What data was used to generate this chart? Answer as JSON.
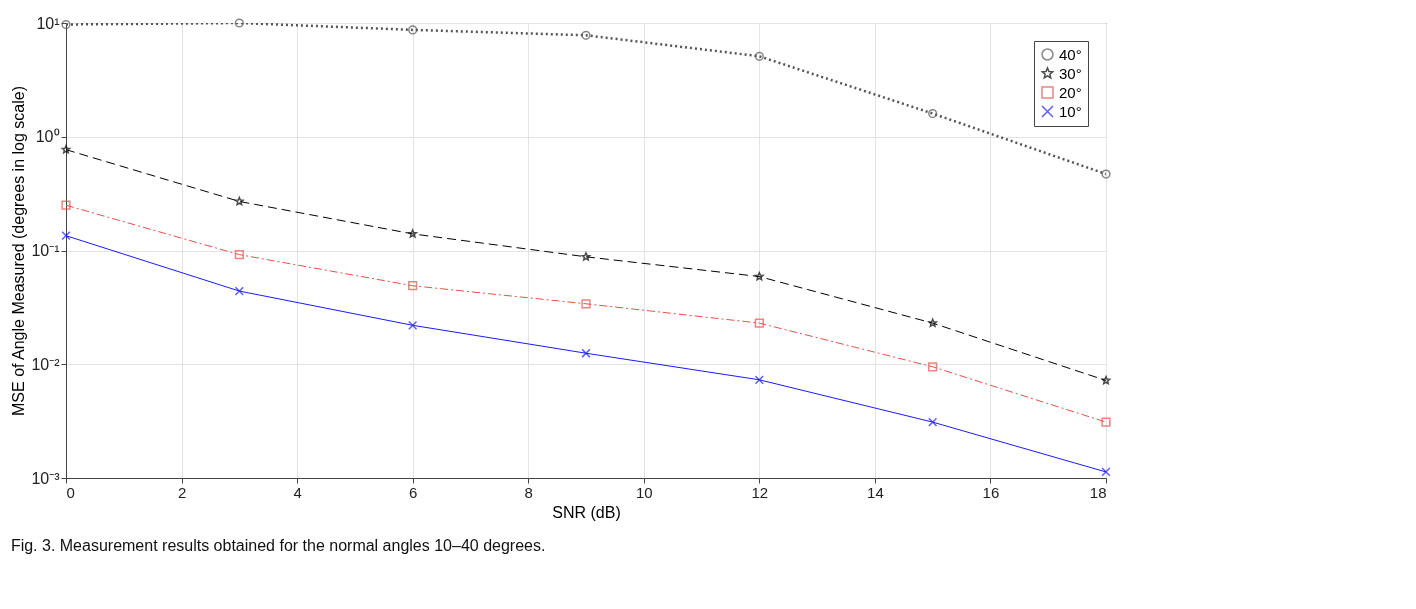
{
  "chart_data": {
    "type": "line",
    "xlabel": "SNR (dB)",
    "ylabel": "MSE of Angle Measured (degrees in log scale)",
    "x": [
      0,
      3,
      6,
      9,
      12,
      15,
      18
    ],
    "series": [
      {
        "name": "40°",
        "color": "#555555",
        "marker": "circle",
        "line_style": "dotted",
        "values": [
          9.7,
          10,
          8.7,
          7.8,
          5.1,
          1.6,
          0.47
        ]
      },
      {
        "name": "30°",
        "color": "#000000",
        "marker": "star",
        "line_style": "dashed",
        "values": [
          0.77,
          0.27,
          0.14,
          0.088,
          0.059,
          0.023,
          0.0072
        ]
      },
      {
        "name": "20°",
        "color": "#e8504a",
        "marker": "square",
        "line_style": "dashdot",
        "values": [
          0.25,
          0.092,
          0.049,
          0.034,
          0.023,
          0.0095,
          0.0031
        ]
      },
      {
        "name": "10°",
        "color": "#1a1aff",
        "marker": "cross",
        "line_style": "solid",
        "values": [
          0.135,
          0.044,
          0.022,
          0.0125,
          0.0073,
          0.0031,
          0.00113
        ]
      }
    ],
    "xlim": [
      0,
      18
    ],
    "xticks": [
      0,
      2,
      4,
      6,
      8,
      10,
      12,
      14,
      16,
      18
    ],
    "ylim": [
      0.001,
      10
    ],
    "yticks": [
      {
        "value": 0.001,
        "label": "10⁻³"
      },
      {
        "value": 0.01,
        "label": "10⁻²"
      },
      {
        "value": 0.1,
        "label": "10⁻¹"
      },
      {
        "value": 1,
        "label": "10⁰"
      },
      {
        "value": 10,
        "label": "10¹"
      }
    ],
    "log": true,
    "grid": true,
    "legend": "top right",
    "annotations": [
      "Fig. 3.  Measurement results obtained for the normal angles 10–40 degrees."
    ]
  }
}
